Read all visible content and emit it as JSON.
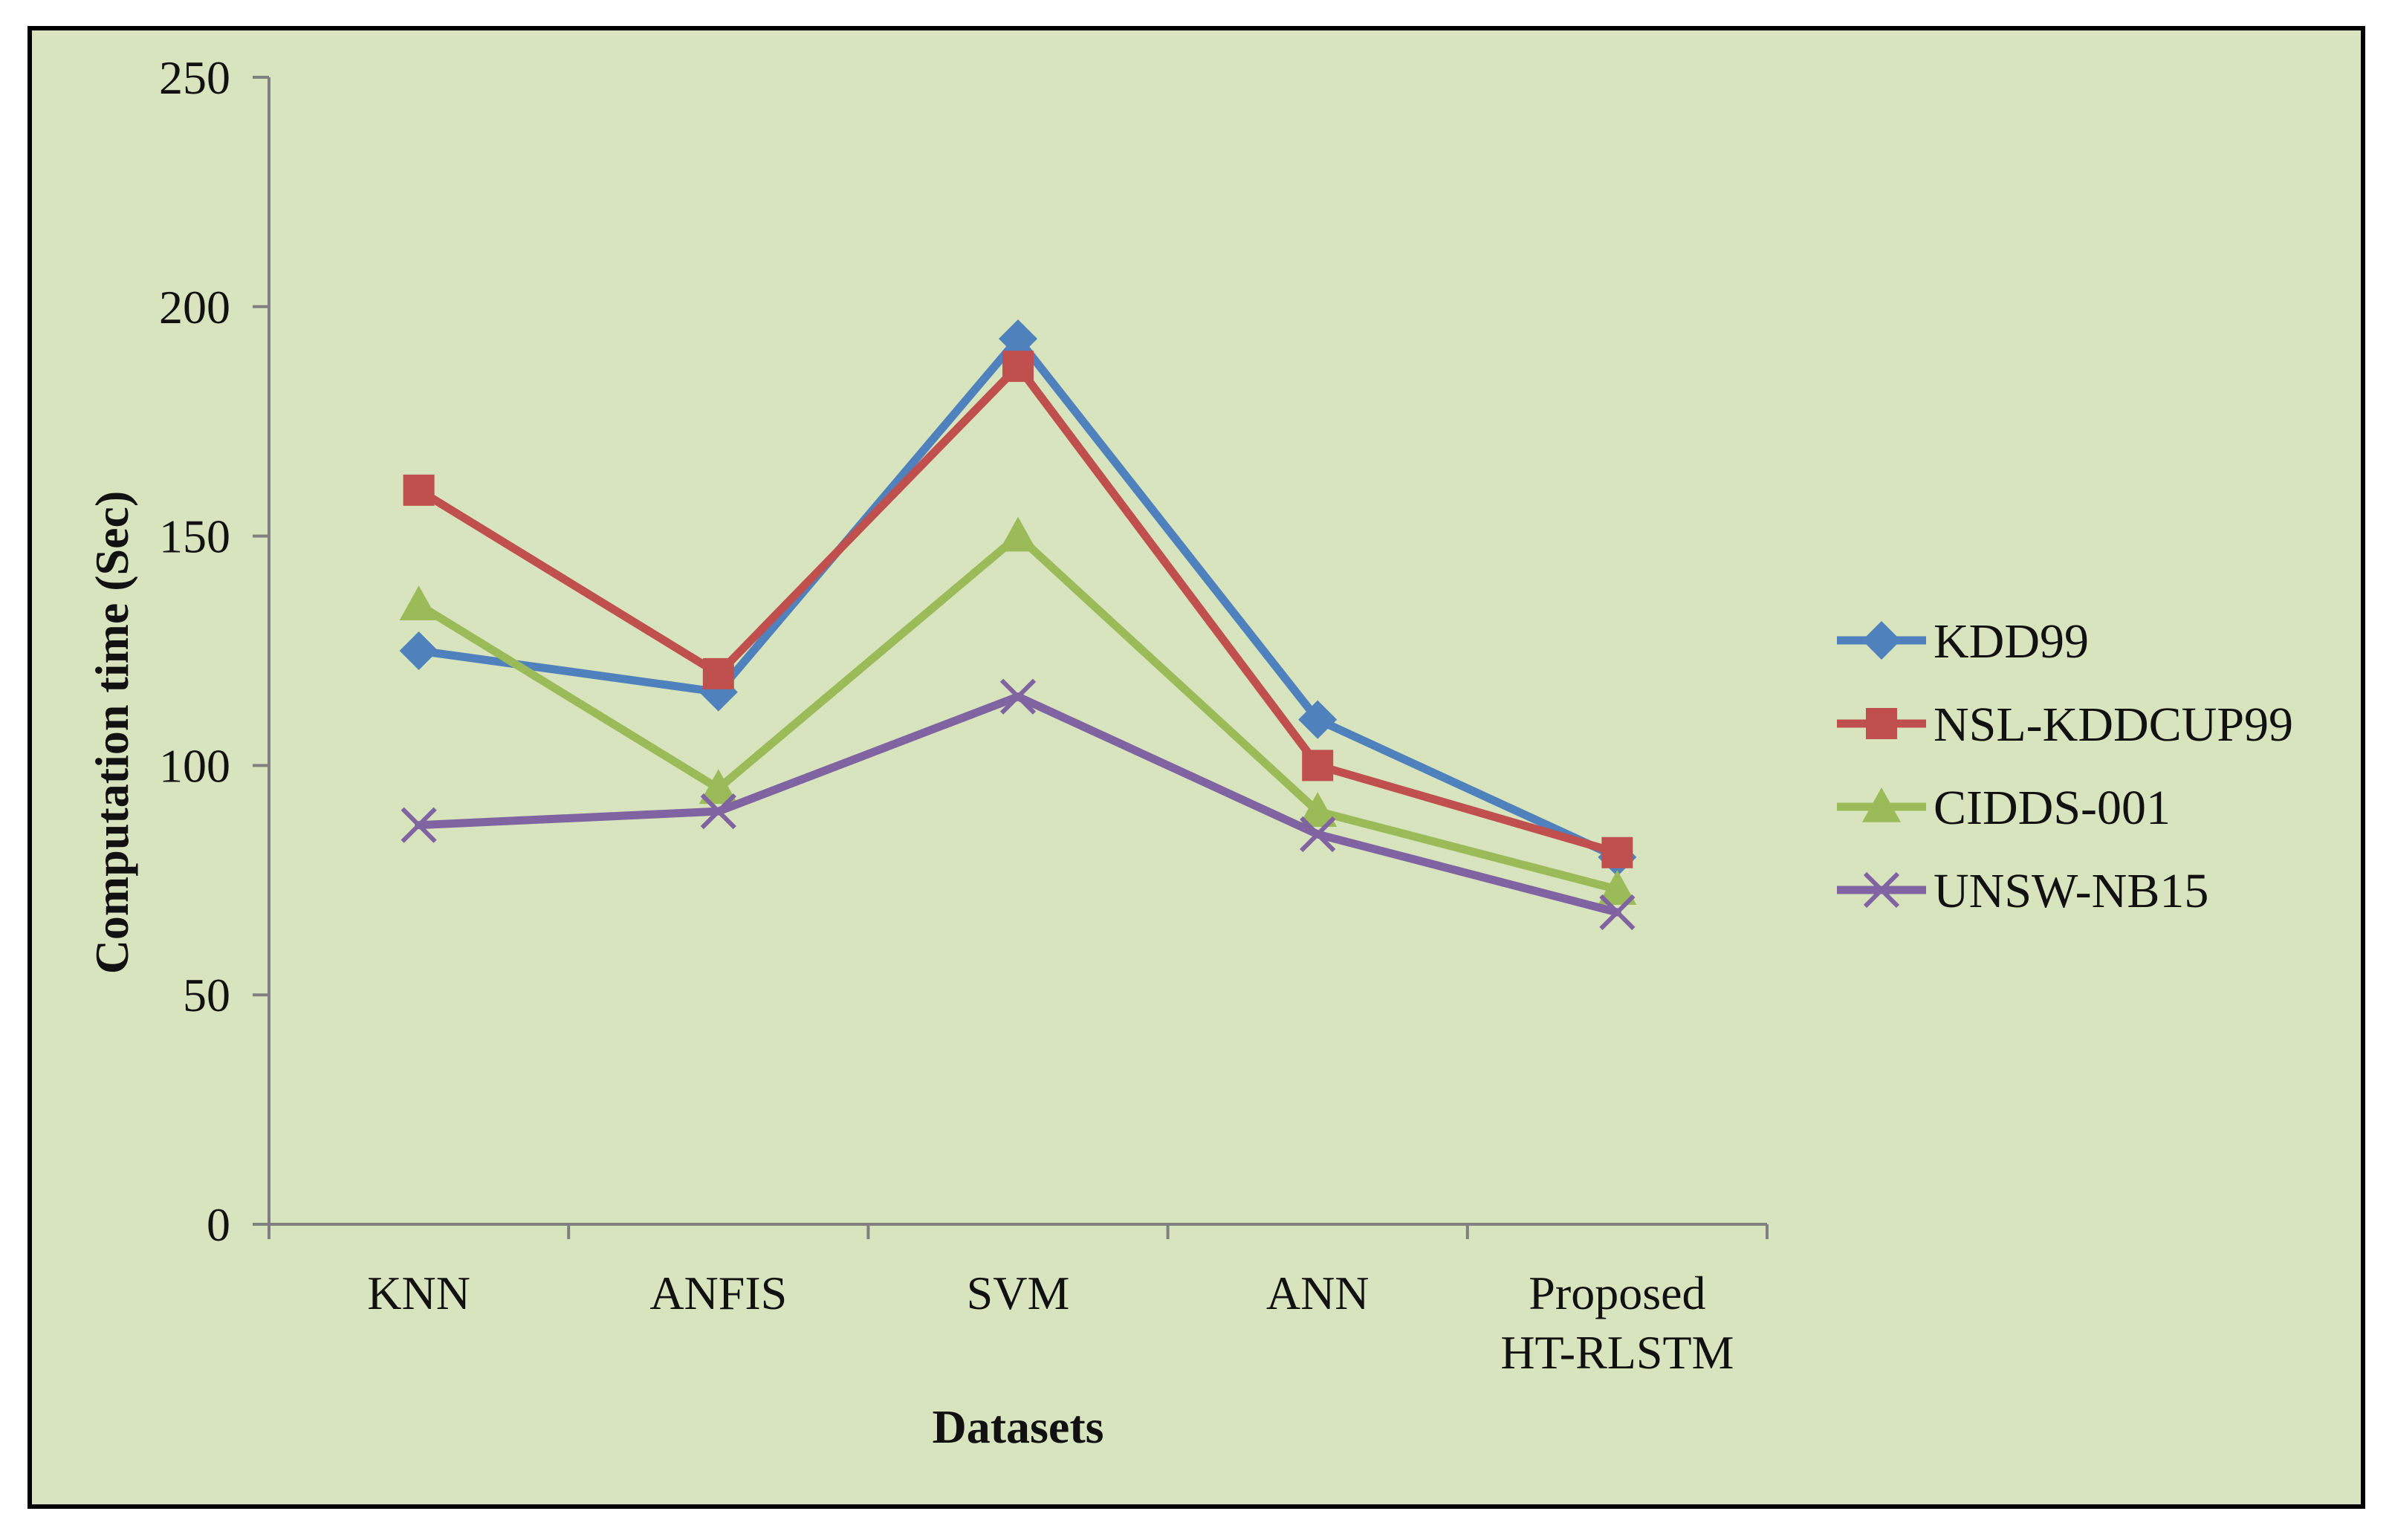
{
  "chart_data": {
    "type": "line",
    "title": "",
    "xlabel": "Datasets",
    "ylabel": "Computation  time  (Sec)",
    "categories": [
      [
        "KNN"
      ],
      [
        "ANFIS"
      ],
      [
        "SVM"
      ],
      [
        "ANN"
      ],
      [
        "Proposed",
        "HT-RLSTM"
      ]
    ],
    "ylim": [
      0,
      250
    ],
    "yticks": [
      0,
      50,
      100,
      150,
      200,
      250
    ],
    "grid": false,
    "legend_position": "right",
    "series": [
      {
        "name": "KDD99",
        "values": [
          125,
          116,
          193,
          110,
          80
        ],
        "color": "#4F81BD",
        "marker": "diamond"
      },
      {
        "name": "NSL-KDDCUP99",
        "values": [
          160,
          120,
          187,
          100,
          81
        ],
        "color": "#C0504D",
        "marker": "square"
      },
      {
        "name": "CIDDS-001",
        "values": [
          135,
          95,
          150,
          90,
          73
        ],
        "color": "#9BBB59",
        "marker": "triangle"
      },
      {
        "name": "UNSW-NB15",
        "values": [
          87,
          90,
          115,
          85,
          68
        ],
        "color": "#8064A2",
        "marker": "x"
      }
    ],
    "background_color": "#D8E4BD",
    "border_color": "#000000",
    "axis_color": "#808080"
  }
}
